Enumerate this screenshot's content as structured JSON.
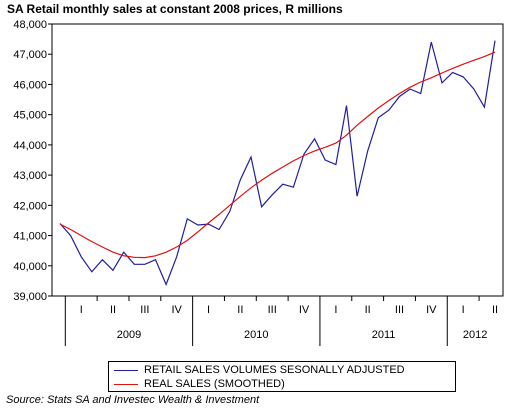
{
  "chart_data": {
    "type": "line",
    "title": "SA Retail monthly sales at constant 2008 prices, R millions",
    "ylim": [
      39000,
      48000
    ],
    "y_ticks": [
      "39,000",
      "40,000",
      "41,000",
      "42,000",
      "43,000",
      "44,000",
      "45,000",
      "46,000",
      "47,000",
      "48,000"
    ],
    "quarter_labels": [
      "I",
      "II",
      "III",
      "IV",
      "I",
      "II",
      "III",
      "IV",
      "I",
      "II",
      "III",
      "IV",
      "I",
      "II"
    ],
    "years": [
      "2009",
      "2010",
      "2011",
      "2012"
    ],
    "x": [
      "2008-12",
      "2009-01",
      "2009-02",
      "2009-03",
      "2009-04",
      "2009-05",
      "2009-06",
      "2009-07",
      "2009-08",
      "2009-09",
      "2009-10",
      "2009-11",
      "2009-12",
      "2010-01",
      "2010-02",
      "2010-03",
      "2010-04",
      "2010-05",
      "2010-06",
      "2010-07",
      "2010-08",
      "2010-09",
      "2010-10",
      "2010-11",
      "2010-12",
      "2011-01",
      "2011-02",
      "2011-03",
      "2011-04",
      "2011-05",
      "2011-06",
      "2011-07",
      "2011-08",
      "2011-09",
      "2011-10",
      "2011-11",
      "2011-12",
      "2012-01",
      "2012-02",
      "2012-03",
      "2012-04",
      "2012-05"
    ],
    "series": [
      {
        "name": "RETAIL SALES VOLUMES SESONALLY ADJUSTED",
        "color": "#1f1f9e",
        "values": [
          41400,
          41000,
          40300,
          39800,
          40200,
          39850,
          40450,
          40050,
          40050,
          40200,
          39380,
          40300,
          41550,
          41350,
          41380,
          41200,
          41800,
          42850,
          43600,
          41950,
          42350,
          42700,
          42600,
          43700,
          44200,
          43500,
          43350,
          45300,
          42300,
          43800,
          44900,
          45150,
          45600,
          45850,
          45700,
          47400,
          46050,
          46400,
          46250,
          45850,
          45250,
          47450
        ]
      },
      {
        "name": "REAL SALES (SMOOTHED)",
        "color": "#dd1111",
        "values": [
          41380,
          41200,
          41000,
          40800,
          40620,
          40450,
          40330,
          40280,
          40270,
          40330,
          40450,
          40620,
          40840,
          41120,
          41420,
          41700,
          42000,
          42300,
          42580,
          42830,
          43060,
          43270,
          43470,
          43650,
          43800,
          43920,
          44060,
          44320,
          44650,
          44940,
          45220,
          45470,
          45700,
          45910,
          46080,
          46220,
          46380,
          46530,
          46670,
          46800,
          46920,
          47070
        ]
      }
    ],
    "legend_position": "bottom",
    "source": "Source: Stats SA and Investec Wealth & Investment"
  }
}
